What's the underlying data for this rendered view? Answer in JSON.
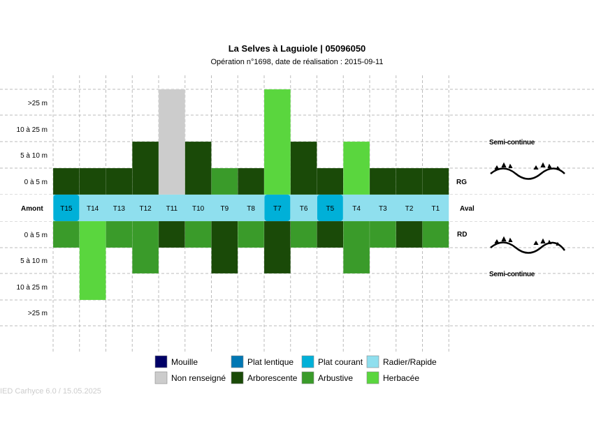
{
  "chart_data": {
    "type": "table",
    "title": "La Selves à Laguiole | 05096050",
    "subtitle": "Opération n°1698, date de réalisation : 2015-09-11",
    "y_labels_rg": [
      ">25 m",
      "10 à 25 m",
      "5 à 10 m",
      "0 à 5 m"
    ],
    "y_labels_rd": [
      "0 à 5 m",
      "5 à 10 m",
      "10 à 25 m",
      ">25 m"
    ],
    "upstream_label": "Amont",
    "downstream_label": "Aval",
    "rg_label": "RG",
    "rd_label": "RD",
    "rg_continuity": "Semi-continue",
    "rd_continuity": "Semi-continue",
    "transects": [
      "T15",
      "T14",
      "T13",
      "T12",
      "T11",
      "T10",
      "T9",
      "T8",
      "T7",
      "T6",
      "T5",
      "T4",
      "T3",
      "T2",
      "T1"
    ],
    "facies": [
      "Plat courant",
      "Radier/Rapide",
      "Radier/Rapide",
      "Radier/Rapide",
      "Radier/Rapide",
      "Radier/Rapide",
      "Radier/Rapide",
      "Radier/Rapide",
      "Plat courant",
      "Radier/Rapide",
      "Plat courant",
      "Radier/Rapide",
      "Radier/Rapide",
      "Radier/Rapide",
      "Radier/Rapide"
    ],
    "rg_width_class": [
      1,
      1,
      1,
      2,
      4,
      2,
      1,
      1,
      4,
      2,
      1,
      2,
      1,
      1,
      1
    ],
    "rg_vegetation": [
      "Arborescente",
      "Arborescente",
      "Arborescente",
      "Arborescente",
      "Non renseigné",
      "Arborescente",
      "Arbustive",
      "Arborescente",
      "Herbacée",
      "Arborescente",
      "Arborescente",
      "Herbacée",
      "Arborescente",
      "Arborescente",
      "Arborescente"
    ],
    "rd_width_class": [
      1,
      3,
      1,
      2,
      1,
      1,
      2,
      1,
      2,
      1,
      1,
      2,
      1,
      1,
      1
    ],
    "rd_vegetation": [
      "Arbustive",
      "Herbacée",
      "Arbustive",
      "Arbustive",
      "Arborescente",
      "Arbustive",
      "Arborescente",
      "Arbustive",
      "Arborescente",
      "Arbustive",
      "Arborescente",
      "Arbustive",
      "Arbustive",
      "Arborescente",
      "Arbustive"
    ],
    "legend": [
      {
        "label": "Mouille",
        "color": "#000066"
      },
      {
        "label": "Plat lentique",
        "color": "#0077b3"
      },
      {
        "label": "Plat courant",
        "color": "#00b0d8"
      },
      {
        "label": "Radier/Rapide",
        "color": "#8fdfee"
      },
      {
        "label": "Non renseigné",
        "color": "#cccccc"
      },
      {
        "label": "Arborescente",
        "color": "#1a4a08"
      },
      {
        "label": "Arbustive",
        "color": "#3a9b2a"
      },
      {
        "label": "Herbacée",
        "color": "#5ad63e"
      }
    ],
    "grid": true
  },
  "footer": "IED Carhyce 6.0 / 15.05.2025"
}
